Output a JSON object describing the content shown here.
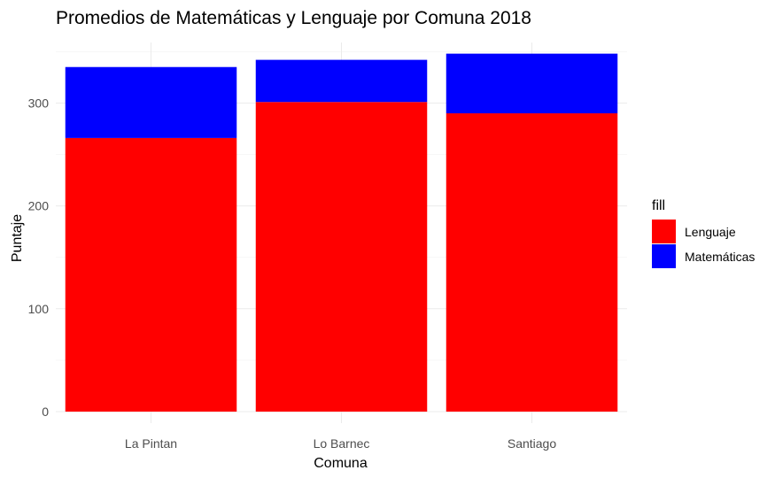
{
  "chart_data": {
    "type": "bar",
    "stacked": true,
    "title": "Promedios de Matemáticas y Lenguaje por Comuna 2018",
    "xlabel": "Comuna",
    "ylabel": "Puntaje",
    "categories": [
      "La Pintan",
      "Lo Barnec",
      "Santiago"
    ],
    "series": [
      {
        "name": "Lenguaje",
        "values": [
          266,
          301,
          290
        ],
        "color": "#ff0000"
      },
      {
        "name": "Matemáticas",
        "values": [
          69,
          41,
          58
        ],
        "color": "#0000ff"
      }
    ],
    "ylim": [
      0,
      350
    ],
    "yticks": [
      0,
      100,
      200,
      300
    ],
    "grid": true,
    "legend": {
      "title": "fill",
      "position": "right"
    }
  }
}
